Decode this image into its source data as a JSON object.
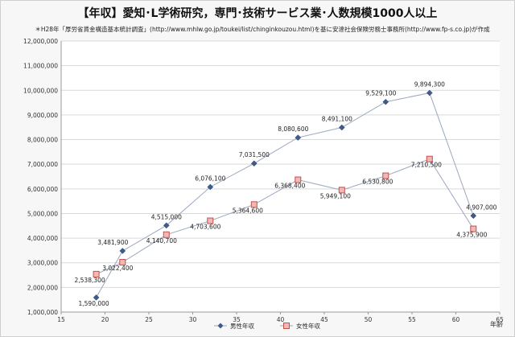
{
  "chart_data": {
    "type": "line",
    "title": "【年収】愛知･L学術研究，専門･技術サービス業･人数規模1000人以上",
    "subtitle": "＊H28年「厚労省賃金構造基本統計調査」(http://www.mhlw.go.jp/toukei/list/chinginkouzou.html)を基に安達社会保険労務士事務所(http://www.fp-s.co.jp)が作成",
    "xlabel": "年齢",
    "ylabel": "",
    "xlim": [
      15,
      65
    ],
    "ylim": [
      1000000,
      12000000
    ],
    "xticks": [
      15,
      20,
      25,
      30,
      35,
      40,
      45,
      50,
      55,
      60,
      65
    ],
    "yticks": [
      1000000,
      2000000,
      3000000,
      4000000,
      5000000,
      6000000,
      7000000,
      8000000,
      9000000,
      10000000,
      11000000,
      12000000
    ],
    "ytick_labels": [
      "1,000,000",
      "2,000,000",
      "3,000,000",
      "4,000,000",
      "5,000,000",
      "6,000,000",
      "7,000,000",
      "8,000,000",
      "9,000,000",
      "10,000,000",
      "11,000,000",
      "12,000,000"
    ],
    "xtick_labels": [
      "15",
      "20",
      "25",
      "30",
      "35",
      "40",
      "45",
      "50",
      "55",
      "60",
      "65"
    ],
    "grid": "horizontal",
    "legend_position": "bottom",
    "series": [
      {
        "name": "男性年収",
        "color": "#3f5b8c",
        "marker": "diamond",
        "x": [
          19,
          22,
          27,
          32,
          37,
          42,
          47,
          52,
          57,
          62
        ],
        "y": [
          1590000,
          3481900,
          4515000,
          6076100,
          7031500,
          8080600,
          8491100,
          9529100,
          9894300,
          4907000
        ],
        "labels": [
          "1,590,000",
          "3,481,900",
          "4,515,000",
          "6,076,100",
          "7,031,500",
          "8,080,600",
          "8,491,100",
          "9,529,100",
          "9,894,300",
          "4,907,000"
        ]
      },
      {
        "name": "女性年収",
        "color": "#c0504d",
        "marker": "square",
        "x": [
          19,
          22,
          27,
          32,
          37,
          42,
          47,
          52,
          57,
          62
        ],
        "y": [
          2538300,
          3022400,
          4140700,
          4703600,
          5364600,
          6368400,
          5949100,
          6530800,
          7210500,
          4375900
        ],
        "labels": [
          "2,538,300",
          "3,022,400",
          "4,140,700",
          "4,703,600",
          "5,364,600",
          "6,368,400",
          "5,949,100",
          "6,530,800",
          "7,210,500",
          "4,375,900"
        ]
      }
    ]
  }
}
